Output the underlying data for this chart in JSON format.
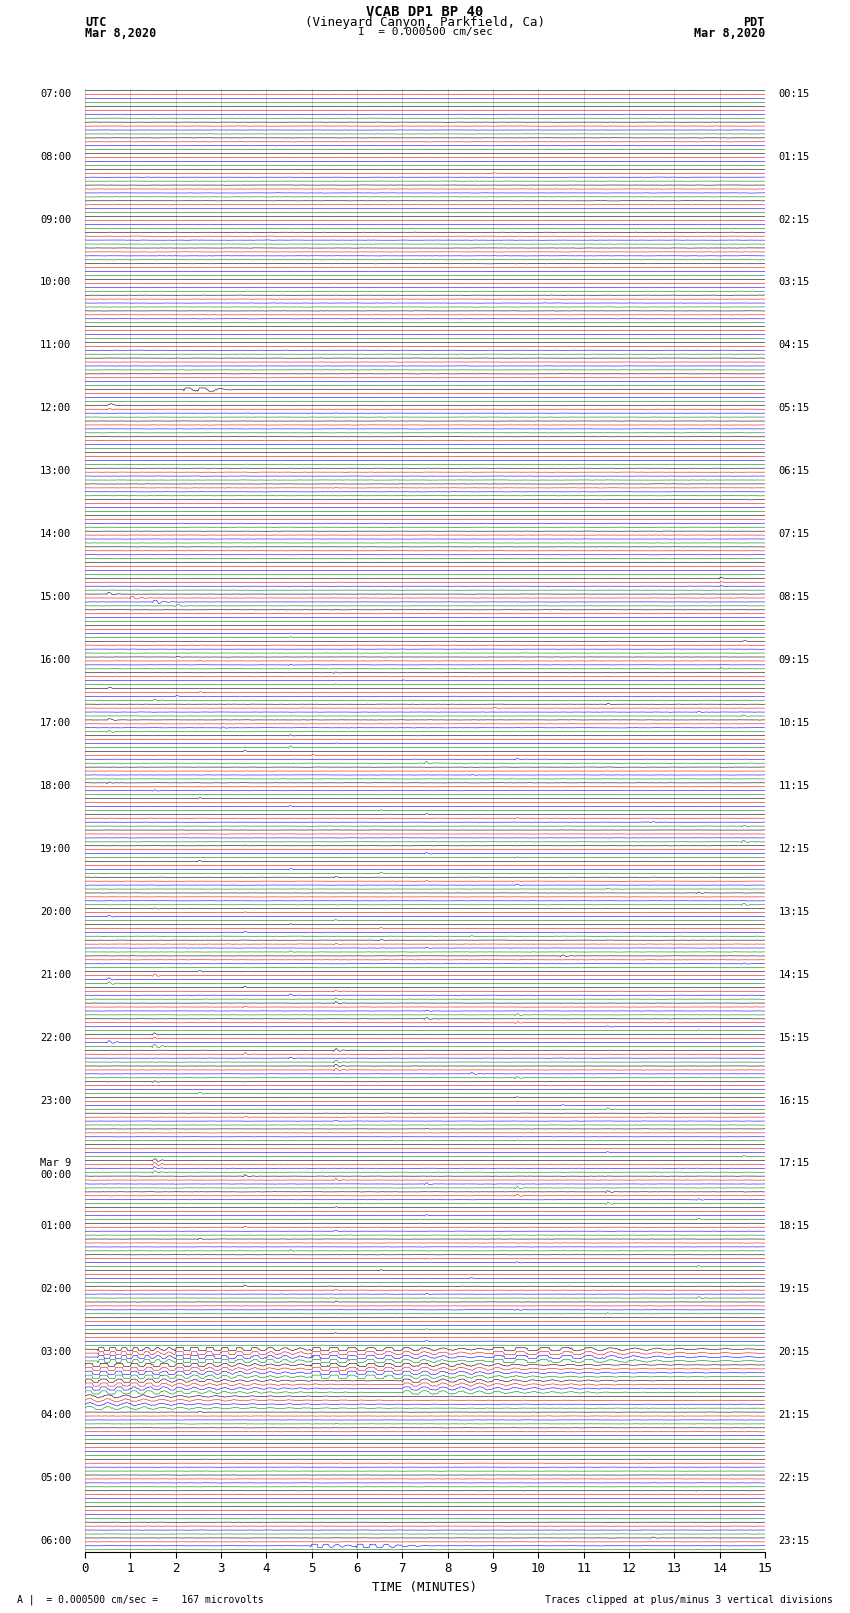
{
  "title_line1": "VCAB DP1 BP 40",
  "title_line2": "(Vineyard Canyon, Parkfield, Ca)",
  "scale_text": "I  = 0.000500 cm/sec",
  "utc_label": "UTC",
  "utc_date": "Mar 8,2020",
  "pdt_label": "PDT",
  "pdt_date": "Mar 8,2020",
  "xlabel": "TIME (MINUTES)",
  "footer_left": "A |  = 0.000500 cm/sec =    167 microvolts",
  "footer_right": "Traces clipped at plus/minus 3 vertical divisions",
  "xlim": [
    0,
    15
  ],
  "colors": [
    "black",
    "red",
    "blue",
    "green"
  ],
  "bg_color": "#ffffff",
  "num_rows": 47,
  "traces_per_row": 4,
  "utc_row_labels": {
    "0": "07:00",
    "4": "08:00",
    "8": "09:00",
    "12": "10:00",
    "16": "11:00",
    "20": "12:00",
    "24": "13:00",
    "28": "14:00",
    "32": "15:00",
    "36": "16:00",
    "40": "17:00",
    "44": "18:00",
    "48": "19:00",
    "52": "20:00",
    "56": "21:00",
    "60": "22:00",
    "64": "23:00",
    "68": "Mar 9\n00:00",
    "72": "01:00",
    "76": "02:00",
    "80": "03:00",
    "84": "04:00",
    "88": "05:00",
    "92": "06:00"
  },
  "pdt_row_labels": {
    "0": "00:15",
    "4": "01:15",
    "8": "02:15",
    "12": "03:15",
    "16": "04:15",
    "20": "05:15",
    "24": "06:15",
    "28": "07:15",
    "32": "08:15",
    "36": "09:15",
    "40": "10:15",
    "44": "11:15",
    "48": "12:15",
    "52": "13:15",
    "56": "14:15",
    "60": "15:15",
    "64": "16:15",
    "68": "17:15",
    "72": "18:15",
    "76": "19:15",
    "80": "20:15",
    "84": "21:15",
    "88": "22:15",
    "92": "23:15"
  }
}
